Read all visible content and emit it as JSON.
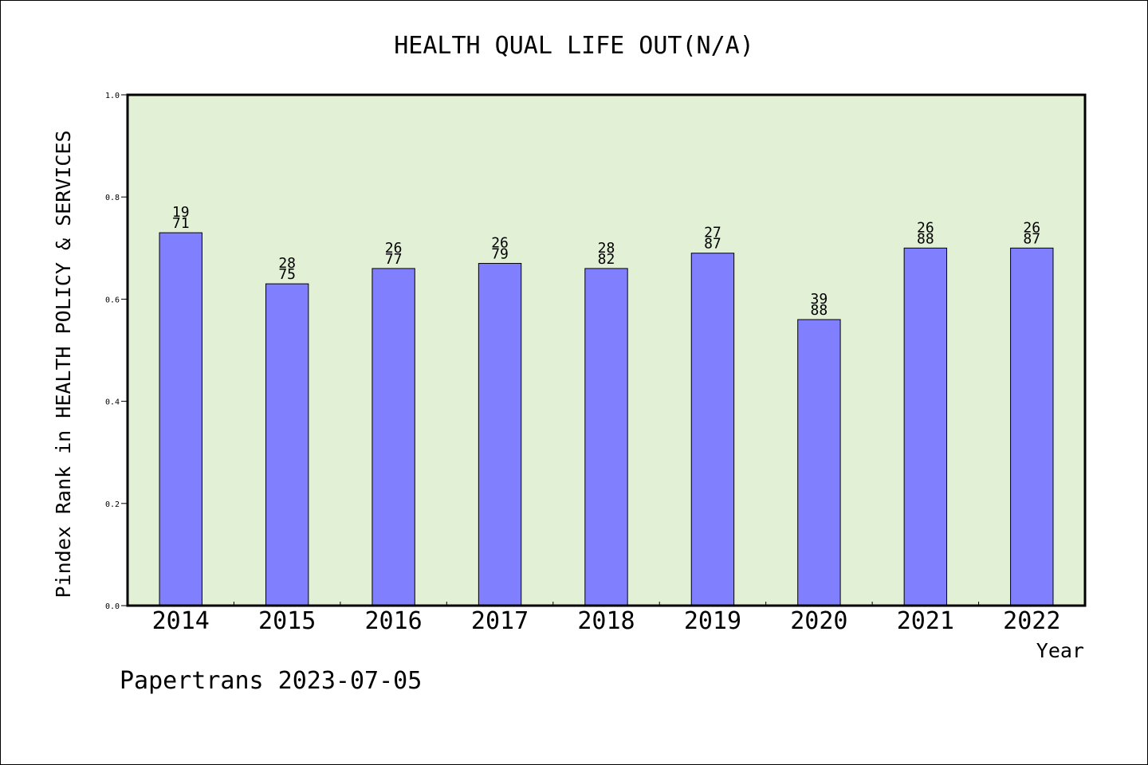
{
  "chart_data": {
    "type": "bar",
    "title": "HEALTH QUAL LIFE OUT(N/A)",
    "xlabel": "Year",
    "ylabel": "Pindex Rank in HEALTH POLICY & SERVICES",
    "ylim": [
      0,
      1.0
    ],
    "yticks": [
      "0.0",
      "0.2",
      "0.4",
      "0.6",
      "0.8",
      "1.0"
    ],
    "grid": false,
    "categories": [
      "2014",
      "2015",
      "2016",
      "2017",
      "2018",
      "2019",
      "2020",
      "2021",
      "2022"
    ],
    "values": [
      0.73,
      0.63,
      0.66,
      0.67,
      0.66,
      0.69,
      0.56,
      0.7,
      0.7
    ],
    "labels": [
      [
        "19",
        "71"
      ],
      [
        "28",
        "75"
      ],
      [
        "26",
        "77"
      ],
      [
        "26",
        "79"
      ],
      [
        "28",
        "82"
      ],
      [
        "27",
        "87"
      ],
      [
        "39",
        "88"
      ],
      [
        "26",
        "88"
      ],
      [
        "26",
        "87"
      ]
    ],
    "colors": {
      "bar": "#8080ff",
      "plot_background": "#e2f0d6"
    }
  },
  "footer": "Papertrans 2023-07-05"
}
